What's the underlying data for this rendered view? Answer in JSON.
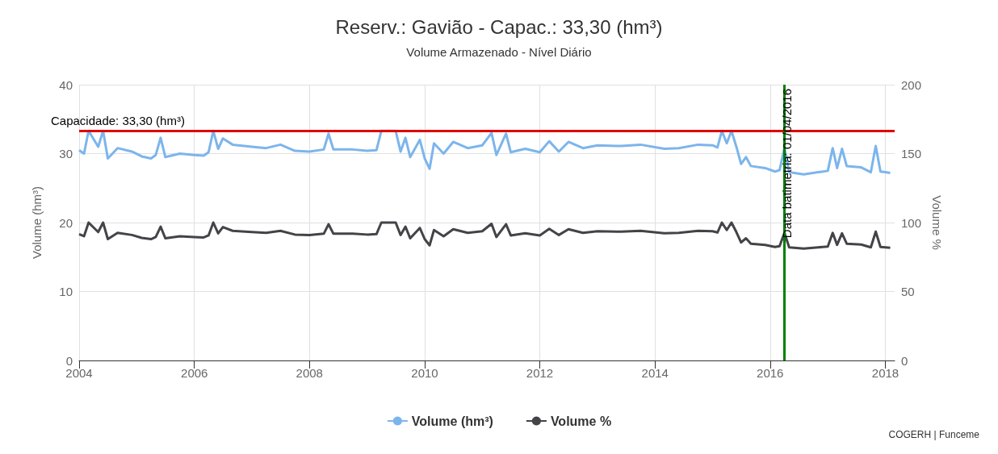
{
  "chart_data": {
    "type": "line",
    "title": "Reserv.: Gavião - Capac.: 33,30 (hm³)",
    "subtitle": "Volume Armazenado - Nível Diário",
    "ylabel": "Volume (hm³)",
    "y2label": "Volume %",
    "x": [
      "2004-01",
      "2004-02",
      "2004-03",
      "2004-05",
      "2004-06",
      "2004-07",
      "2004-09",
      "2004-12",
      "2005-02",
      "2005-04",
      "2005-05",
      "2005-06",
      "2005-07",
      "2005-10",
      "2006-01",
      "2006-03",
      "2006-04",
      "2006-05",
      "2006-06",
      "2006-07",
      "2006-09",
      "2007-01",
      "2007-04",
      "2007-07",
      "2007-10",
      "2008-01",
      "2008-04",
      "2008-05",
      "2008-06",
      "2008-10",
      "2009-01",
      "2009-03",
      "2009-04",
      "2009-07",
      "2009-08",
      "2009-09",
      "2009-10",
      "2009-12",
      "2010-01",
      "2010-02",
      "2010-03",
      "2010-05",
      "2010-07",
      "2010-10",
      "2011-01",
      "2011-03",
      "2011-04",
      "2011-06",
      "2011-07",
      "2011-10",
      "2012-01",
      "2012-03",
      "2012-05",
      "2012-07",
      "2012-10",
      "2013-01",
      "2013-06",
      "2013-10",
      "2014-03",
      "2014-06",
      "2014-10",
      "2015-01",
      "2015-02",
      "2015-03",
      "2015-04",
      "2015-05",
      "2015-06",
      "2015-07",
      "2015-08",
      "2015-09",
      "2015-12",
      "2016-02",
      "2016-03",
      "2016-04",
      "2016-05",
      "2016-08",
      "2016-11",
      "2017-01",
      "2017-02",
      "2017-03",
      "2017-04",
      "2017-05",
      "2017-08",
      "2017-10",
      "2017-11",
      "2017-12",
      "2018-01",
      "2018-02"
    ],
    "series": [
      {
        "name": "Volume (hm³)",
        "color": "#7cb5ec",
        "values": [
          30.5,
          30,
          33.3,
          31,
          33.3,
          29.3,
          30.8,
          30.3,
          29.6,
          29.3,
          29.8,
          32.3,
          29.5,
          30,
          29.8,
          29.7,
          30.2,
          33.3,
          30.7,
          32.2,
          31.3,
          31,
          30.8,
          31.3,
          30.4,
          30.3,
          30.6,
          32.9,
          30.6,
          30.6,
          30.4,
          30.5,
          33.3,
          33.3,
          30.3,
          32.3,
          29.5,
          32,
          29.3,
          27.8,
          31.5,
          30,
          31.7,
          30.8,
          31.2,
          33,
          29.8,
          32.9,
          30.2,
          30.7,
          30.2,
          31.8,
          30.3,
          31.7,
          30.8,
          31.2,
          31.1,
          31.3,
          30.7,
          30.8,
          31.3,
          31.2,
          30.9,
          33.3,
          31.5,
          33.3,
          31,
          28.5,
          29.5,
          28.2,
          27.9,
          27.4,
          27.6,
          30.8,
          27.3,
          27,
          27.3,
          27.5,
          30.8,
          27.9,
          30.7,
          28.2,
          28,
          27.3,
          31.1,
          27.4,
          27.3,
          27.2
        ]
      },
      {
        "name": "Volume %",
        "color": "#434348",
        "axis": "y2",
        "values": [
          91.6,
          90.1,
          100,
          93.1,
          100,
          88,
          92.5,
          91,
          88.9,
          88,
          89.5,
          97,
          88.6,
          90.1,
          89.5,
          89.2,
          90.7,
          100,
          92.2,
          96.7,
          94,
          93.1,
          92.5,
          94,
          91.3,
          91,
          91.9,
          98.8,
          91.9,
          91.9,
          91.3,
          91.6,
          100,
          100,
          91,
          97,
          88.6,
          96.1,
          88,
          83.5,
          94.6,
          90.1,
          95.2,
          92.5,
          93.7,
          99.1,
          89.5,
          98.8,
          90.7,
          92.2,
          90.7,
          95.5,
          91,
          95.2,
          92.5,
          93.7,
          93.4,
          94,
          92.2,
          92.5,
          94,
          93.7,
          92.8,
          100,
          94.6,
          100,
          93.1,
          85.6,
          88.6,
          84.7,
          83.8,
          82.3,
          82.9,
          92.5,
          82,
          81.1,
          82,
          82.6,
          92.5,
          83.8,
          92.2,
          84.7,
          84.1,
          82,
          93.4,
          82.3,
          82,
          81.7
        ]
      }
    ],
    "xlim": [
      "2004-01",
      "2018-03"
    ],
    "xticks": [
      "2004",
      "2006",
      "2008",
      "2010",
      "2012",
      "2014",
      "2016",
      "2018"
    ],
    "ylim": [
      0,
      40
    ],
    "yticks": [
      0,
      10,
      20,
      30,
      40
    ],
    "y2lim": [
      0,
      200
    ],
    "y2ticks": [
      0,
      50,
      100,
      150,
      200
    ],
    "ref_lines": [
      {
        "axis": "y",
        "value": 33.3,
        "label": "Capacidade: 33,30 (hm³)",
        "color": "#e00000"
      },
      {
        "axis": "x",
        "value": "2016-04-01",
        "label": "Data batimetria: 01/04/2016",
        "color": "#008000"
      }
    ],
    "annotations": [
      "COGERH | Funceme"
    ],
    "grid": true,
    "legend": "bottom",
    "line_style": "solid"
  }
}
